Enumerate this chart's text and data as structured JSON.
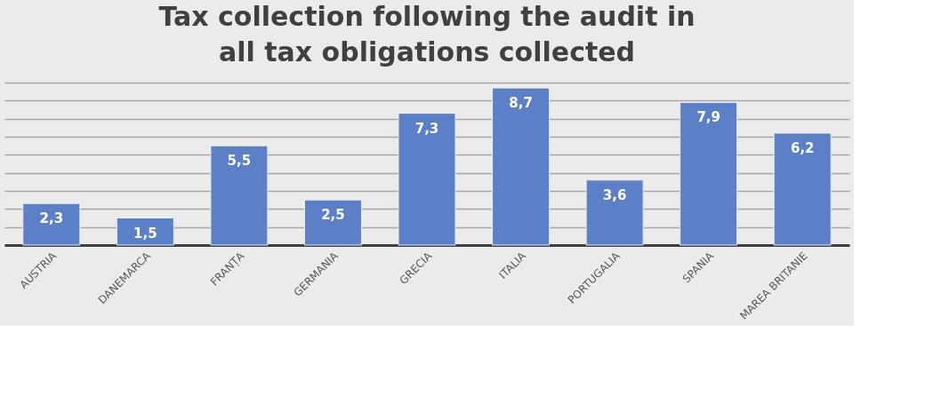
{
  "chart_data": {
    "type": "bar",
    "title": "Tax collection following the audit in\nall tax  obligations collected",
    "categories": [
      "AUSTRIA",
      "DANEMARCA",
      "FRANȚA",
      "GERMANIA",
      "GRECIA",
      "ITALIA",
      "PORTUGALIA",
      "SPANIA",
      "MAREA BRITANIE"
    ],
    "values": [
      2.3,
      1.5,
      5.5,
      2.5,
      7.3,
      8.7,
      3.6,
      7.9,
      6.2
    ],
    "value_labels": [
      "2,3",
      "1,5",
      "5,5",
      "2,5",
      "7,3",
      "8,7",
      "3,6",
      "7,9",
      "6,2"
    ],
    "color": "#5b80c8",
    "grid": "y",
    "tick_labels": "x"
  }
}
